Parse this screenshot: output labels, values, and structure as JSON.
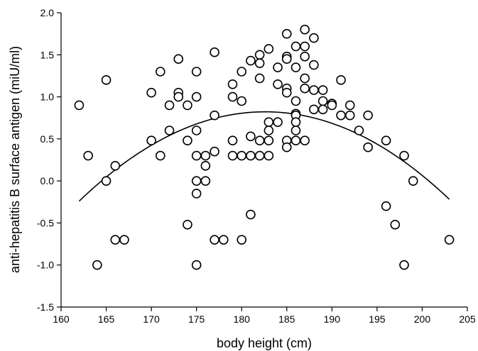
{
  "chart_data": {
    "type": "scatter",
    "title": "",
    "xlabel": "body height (cm)",
    "ylabel": "anti-hepatitis B surface antigen (miU/ml)",
    "xlim": [
      160,
      205
    ],
    "ylim": [
      -1.5,
      2.0
    ],
    "xticks": [
      "160",
      "165",
      "170",
      "175",
      "180",
      "185",
      "190",
      "195",
      "200",
      "205"
    ],
    "yticks": [
      "-1.5",
      "-1.0",
      "-0.5",
      "0.0",
      "0.5",
      "1.0",
      "1.5",
      "2.0"
    ],
    "grid": false,
    "legend": "none",
    "series": [
      {
        "marker": "open-circle",
        "points": [
          [
            162,
            0.9
          ],
          [
            163,
            0.3
          ],
          [
            164,
            -1.0
          ],
          [
            165,
            1.2
          ],
          [
            165,
            0.0
          ],
          [
            166,
            0.18
          ],
          [
            166,
            -0.7
          ],
          [
            167,
            -0.7
          ],
          [
            170,
            1.05
          ],
          [
            170,
            0.48
          ],
          [
            171,
            1.3
          ],
          [
            171,
            0.3
          ],
          [
            172,
            0.9
          ],
          [
            172,
            0.6
          ],
          [
            173,
            1.45
          ],
          [
            173,
            1.05
          ],
          [
            173,
            1.0
          ],
          [
            174,
            0.9
          ],
          [
            174,
            0.48
          ],
          [
            174,
            -0.52
          ],
          [
            175,
            1.3
          ],
          [
            175,
            1.0
          ],
          [
            175,
            0.6
          ],
          [
            175,
            0.3
          ],
          [
            175,
            0.0
          ],
          [
            175,
            -0.15
          ],
          [
            175,
            -1.0
          ],
          [
            176,
            0.3
          ],
          [
            176,
            0.18
          ],
          [
            176,
            0.0
          ],
          [
            177,
            1.53
          ],
          [
            177,
            0.78
          ],
          [
            177,
            0.35
          ],
          [
            177,
            -0.7
          ],
          [
            178,
            -0.7
          ],
          [
            179,
            1.15
          ],
          [
            179,
            1.0
          ],
          [
            179,
            0.48
          ],
          [
            179,
            0.3
          ],
          [
            180,
            1.3
          ],
          [
            180,
            0.95
          ],
          [
            180,
            0.3
          ],
          [
            180,
            -0.7
          ],
          [
            181,
            1.43
          ],
          [
            181,
            0.53
          ],
          [
            181,
            0.3
          ],
          [
            181,
            -0.4
          ],
          [
            182,
            1.5
          ],
          [
            182,
            1.4
          ],
          [
            182,
            1.22
          ],
          [
            182,
            0.48
          ],
          [
            182,
            0.3
          ],
          [
            183,
            1.57
          ],
          [
            183,
            0.7
          ],
          [
            183,
            0.6
          ],
          [
            183,
            0.48
          ],
          [
            183,
            0.3
          ],
          [
            184,
            1.35
          ],
          [
            184,
            1.15
          ],
          [
            184,
            0.7
          ],
          [
            185,
            1.75
          ],
          [
            185,
            1.48
          ],
          [
            185,
            1.45
          ],
          [
            185,
            1.1
          ],
          [
            185,
            1.05
          ],
          [
            185,
            0.48
          ],
          [
            185,
            0.4
          ],
          [
            186,
            1.6
          ],
          [
            186,
            1.35
          ],
          [
            186,
            0.95
          ],
          [
            186,
            0.8
          ],
          [
            186,
            0.78
          ],
          [
            186,
            0.7
          ],
          [
            186,
            0.6
          ],
          [
            186,
            0.48
          ],
          [
            187,
            1.8
          ],
          [
            187,
            1.6
          ],
          [
            187,
            1.48
          ],
          [
            187,
            1.22
          ],
          [
            187,
            1.1
          ],
          [
            187,
            0.48
          ],
          [
            188,
            1.7
          ],
          [
            188,
            1.38
          ],
          [
            188,
            1.08
          ],
          [
            188,
            0.85
          ],
          [
            189,
            1.08
          ],
          [
            189,
            0.95
          ],
          [
            189,
            0.85
          ],
          [
            190,
            0.92
          ],
          [
            190,
            0.9
          ],
          [
            191,
            1.2
          ],
          [
            191,
            0.78
          ],
          [
            192,
            0.9
          ],
          [
            192,
            0.78
          ],
          [
            193,
            0.6
          ],
          [
            194,
            0.78
          ],
          [
            194,
            0.4
          ],
          [
            196,
            0.48
          ],
          [
            196,
            -0.3
          ],
          [
            197,
            -0.52
          ],
          [
            198,
            0.3
          ],
          [
            198,
            -1.0
          ],
          [
            199,
            0.0
          ],
          [
            203,
            -0.7
          ]
        ]
      }
    ],
    "trendline": {
      "type": "quadratic",
      "points": [
        [
          162,
          -0.31
        ],
        [
          166,
          0.18
        ],
        [
          172,
          0.6
        ],
        [
          177,
          0.76
        ],
        [
          183,
          0.8
        ],
        [
          188,
          0.73
        ],
        [
          193,
          0.52
        ],
        [
          198,
          0.2
        ],
        [
          203,
          -0.17
        ]
      ]
    }
  }
}
